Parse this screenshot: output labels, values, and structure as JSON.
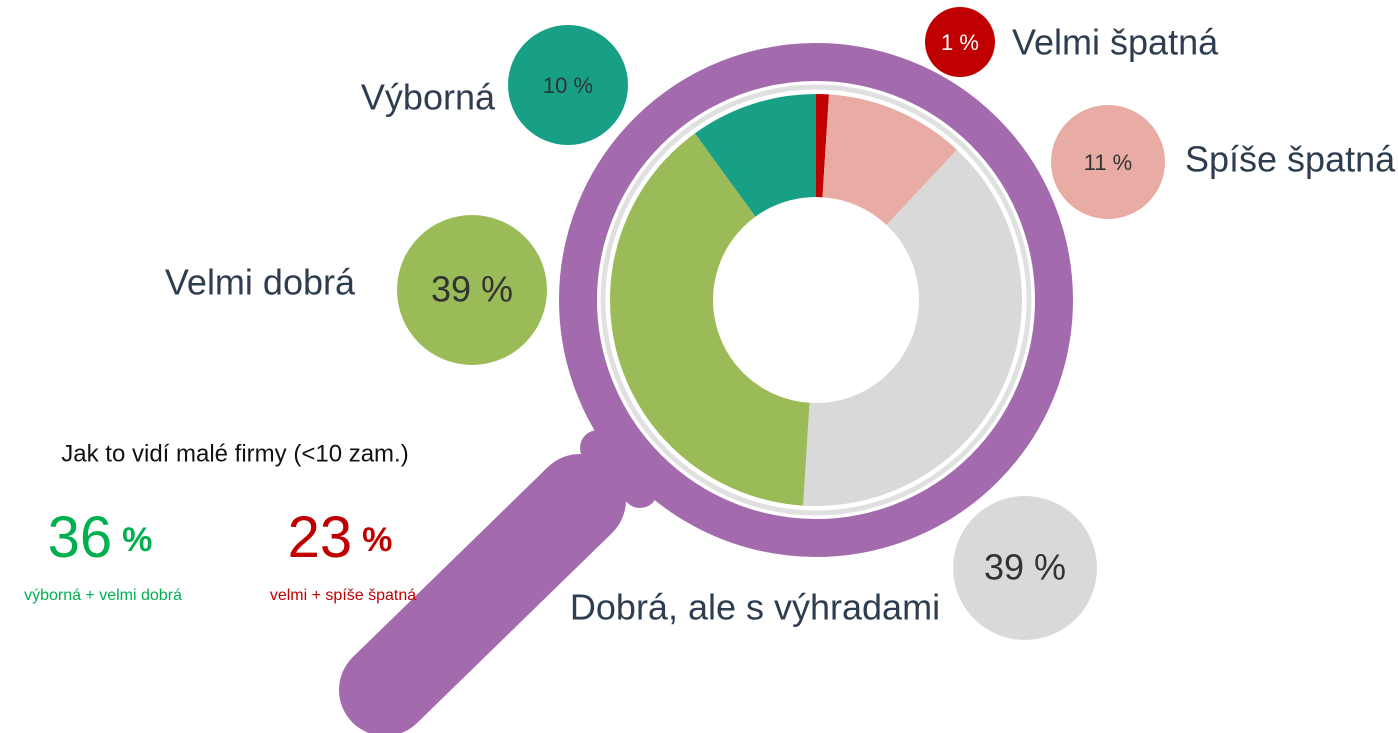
{
  "chart_data": {
    "type": "donut",
    "categories": [
      "Velmi špatná",
      "Spíše špatná",
      "Dobrá, ale s výhradami",
      "Velmi dobrá",
      "Výborná"
    ],
    "values": [
      1,
      11,
      39,
      39,
      10
    ],
    "value_labels": [
      "1 %",
      "11 %",
      "39 %",
      "39 %",
      "10 %"
    ],
    "colors": [
      "#c00000",
      "#e9aca4",
      "#d9d9d9",
      "#9bbb59",
      "#17a086"
    ],
    "summary": {
      "title": "Jak to vidí malé firmy (<10 zam.)",
      "items": [
        {
          "value": 36,
          "unit": "%",
          "label": "výborná + velmi dobrá",
          "color": "#00b050"
        },
        {
          "value": 23,
          "unit": "%",
          "label": "velmi + spíše špatná",
          "color": "#c00000"
        }
      ]
    }
  }
}
